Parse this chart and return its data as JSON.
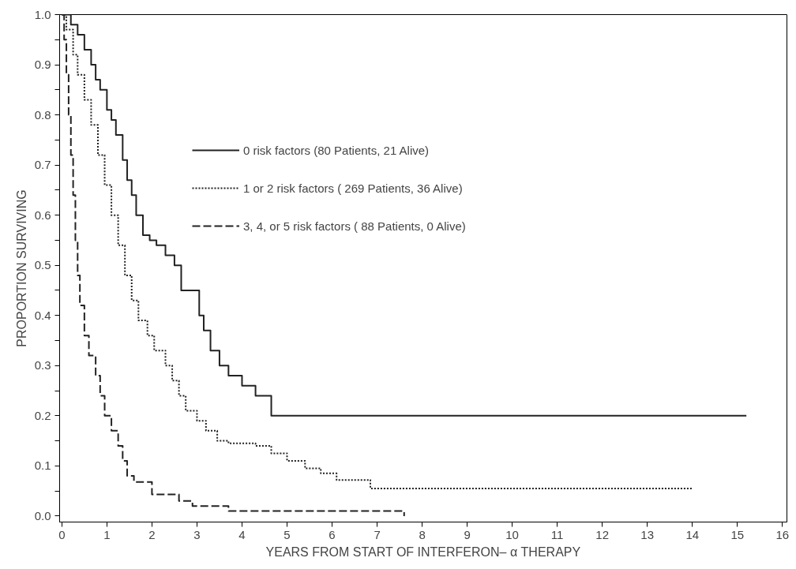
{
  "chart_data": {
    "type": "step",
    "xlabel": "YEARS FROM START OF INTERFERON– α THERAPY",
    "ylabel": "PROPORTION SURVIVING",
    "xlim": [
      -0.05,
      16.1
    ],
    "ylim": [
      -0.012,
      1.0
    ],
    "xticks": [
      0,
      1,
      2,
      3,
      4,
      5,
      6,
      7,
      8,
      9,
      10,
      11,
      12,
      13,
      14,
      15,
      16
    ],
    "yticks": [
      {
        "value": 0.0,
        "label": "0.0"
      },
      {
        "value": 0.05,
        "label": null
      },
      {
        "value": 0.1,
        "label": "0.1"
      },
      {
        "value": 0.15,
        "label": null
      },
      {
        "value": 0.2,
        "label": "0.2"
      },
      {
        "value": 0.25,
        "label": null
      },
      {
        "value": 0.3,
        "label": "0.3"
      },
      {
        "value": 0.35,
        "label": null
      },
      {
        "value": 0.4,
        "label": "0.4"
      },
      {
        "value": 0.45,
        "label": null
      },
      {
        "value": 0.5,
        "label": "0.5"
      },
      {
        "value": 0.55,
        "label": null
      },
      {
        "value": 0.6,
        "label": "0.6"
      },
      {
        "value": 0.65,
        "label": null
      },
      {
        "value": 0.7,
        "label": "0.7"
      },
      {
        "value": 0.75,
        "label": null
      },
      {
        "value": 0.8,
        "label": "0.8"
      },
      {
        "value": 0.85,
        "label": null
      },
      {
        "value": 0.9,
        "label": "0.9"
      },
      {
        "value": 0.95,
        "label": null
      },
      {
        "value": 1.0,
        "label": "1.0"
      }
    ],
    "grid": false,
    "legend": "top",
    "series": [
      {
        "name": "0 risk factors (80 Patients, 21 Alive)",
        "color": "#222222",
        "line_style": "solid",
        "x": [
          0,
          0.2,
          0.35,
          0.5,
          0.65,
          0.75,
          0.85,
          1.0,
          1.1,
          1.2,
          1.35,
          1.45,
          1.55,
          1.65,
          1.8,
          1.95,
          2.1,
          2.3,
          2.5,
          2.65,
          3.05,
          3.15,
          3.3,
          3.5,
          3.7,
          4.0,
          4.3,
          4.65,
          15.2
        ],
        "values": [
          1.0,
          0.98,
          0.96,
          0.93,
          0.9,
          0.87,
          0.85,
          0.81,
          0.79,
          0.76,
          0.71,
          0.67,
          0.64,
          0.6,
          0.56,
          0.55,
          0.54,
          0.52,
          0.5,
          0.45,
          0.4,
          0.37,
          0.33,
          0.3,
          0.28,
          0.26,
          0.24,
          0.2,
          0.2
        ]
      },
      {
        "name": "1 or 2 risk factors ( 269 Patients, 36 Alive)",
        "color": "#222222",
        "line_style": "dotted",
        "x": [
          0,
          0.1,
          0.25,
          0.35,
          0.5,
          0.65,
          0.8,
          0.95,
          1.1,
          1.25,
          1.4,
          1.55,
          1.7,
          1.9,
          2.05,
          2.3,
          2.45,
          2.6,
          2.75,
          3.0,
          3.2,
          3.45,
          3.7,
          4.3,
          4.65,
          5.0,
          5.4,
          5.75,
          6.1,
          6.85,
          14.0
        ],
        "values": [
          1.0,
          0.97,
          0.92,
          0.88,
          0.83,
          0.78,
          0.72,
          0.66,
          0.6,
          0.54,
          0.48,
          0.43,
          0.39,
          0.36,
          0.33,
          0.3,
          0.27,
          0.24,
          0.21,
          0.19,
          0.17,
          0.15,
          0.145,
          0.14,
          0.125,
          0.11,
          0.095,
          0.085,
          0.072,
          0.055,
          0.055
        ]
      },
      {
        "name": "3, 4, or 5 risk factors ( 88 Patients, 0 Alive)",
        "color": "#222222",
        "line_style": "dashed",
        "x": [
          0,
          0.05,
          0.1,
          0.15,
          0.2,
          0.25,
          0.3,
          0.35,
          0.4,
          0.5,
          0.6,
          0.75,
          0.85,
          0.95,
          1.1,
          1.25,
          1.35,
          1.45,
          1.6,
          2.0,
          2.6,
          2.9,
          3.7,
          7.6
        ],
        "values": [
          1.0,
          0.95,
          0.88,
          0.8,
          0.72,
          0.64,
          0.55,
          0.48,
          0.42,
          0.36,
          0.32,
          0.28,
          0.24,
          0.2,
          0.17,
          0.14,
          0.11,
          0.08,
          0.068,
          0.043,
          0.03,
          0.02,
          0.01,
          0.0
        ]
      }
    ]
  }
}
